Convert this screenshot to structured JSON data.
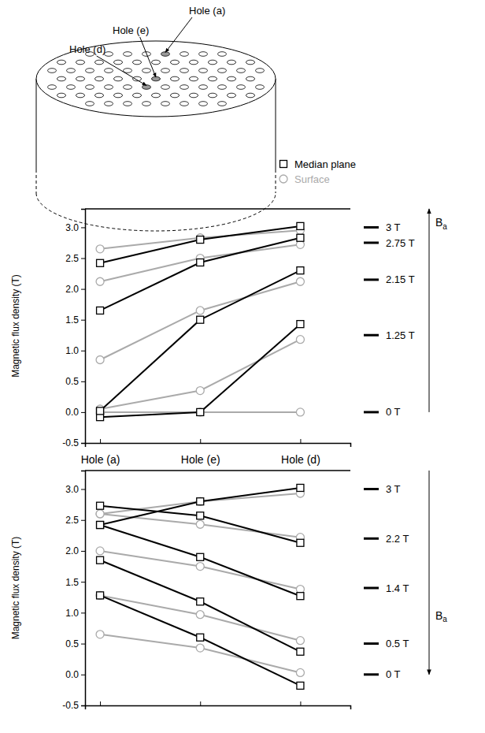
{
  "diagram": {
    "labels": [
      "Hole (a)",
      "Hole (e)",
      "Hole (d)"
    ]
  },
  "chart_data": [
    {
      "type": "line",
      "y_label": "Magnetic flux density (T)",
      "categories": [
        "Hole (a)",
        "Hole (e)",
        "Hole (d)"
      ],
      "ylim": [
        -0.5,
        3.3
      ],
      "yticks": [
        -0.5,
        {
          "value": 0,
          "label": "0.0"
        },
        0.5,
        {
          "value": 1,
          "label": "1.0"
        },
        1.5,
        {
          "value": 2,
          "label": "2.0"
        },
        2.5,
        {
          "value": 3,
          "label": "3.0"
        }
      ],
      "legend": "top",
      "series": [
        {
          "name": "Median plane",
          "color": "#000000",
          "marker": "square",
          "values": [
            -0.08,
            0.0,
            1.43
          ]
        },
        {
          "name": "Surface",
          "color": "#aaaaaa",
          "marker": "circle",
          "values": [
            0.05,
            0.35,
            1.18
          ]
        },
        {
          "name": "Median plane",
          "color": "#000000",
          "marker": "square",
          "values": [
            0.02,
            1.5,
            2.3
          ]
        },
        {
          "name": "Surface",
          "color": "#aaaaaa",
          "marker": "circle",
          "values": [
            0.85,
            1.65,
            2.12
          ]
        },
        {
          "name": "Median plane",
          "color": "#000000",
          "marker": "square",
          "values": [
            1.65,
            2.43,
            2.83
          ]
        },
        {
          "name": "Surface",
          "color": "#aaaaaa",
          "marker": "circle",
          "values": [
            2.12,
            2.5,
            2.72
          ]
        },
        {
          "name": "Median plane",
          "color": "#000000",
          "marker": "square",
          "values": [
            2.42,
            2.8,
            3.02
          ]
        },
        {
          "name": "Surface",
          "color": "#aaaaaa",
          "marker": "circle",
          "values": [
            2.65,
            2.83,
            2.95
          ]
        },
        {
          "name": "Surface",
          "color": "#aaaaaa",
          "marker": "circle",
          "values": [
            0,
            0,
            0
          ]
        }
      ],
      "annotations": [
        {
          "text": "3 T",
          "value": 3
        },
        {
          "text": "2.75 T",
          "value": 2.75
        },
        {
          "text": "2.15 T",
          "value": 2.15
        },
        {
          "text": "1.25 T",
          "value": 1.25
        },
        {
          "text": "0 T",
          "value": 0
        }
      ],
      "arrow": {
        "from": 0,
        "to": 3.3,
        "label": {
          "base": "B",
          "subscript": "a"
        }
      }
    },
    {
      "type": "line",
      "y_label": "Magnetic flux density (T)",
      "categories": [
        null,
        null,
        null
      ],
      "ylim": [
        -0.5,
        3.3
      ],
      "yticks": [
        -0.5,
        {
          "value": 0,
          "label": "0.0"
        },
        0.5,
        {
          "value": 1,
          "label": "1.0"
        },
        1.5,
        {
          "value": 2,
          "label": "2.0"
        },
        2.5,
        {
          "value": 3,
          "label": "3.0"
        }
      ],
      "series": [
        {
          "name": "Median plane",
          "color": "#000000",
          "marker": "square",
          "values": [
            2.42,
            2.8,
            3.02
          ]
        },
        {
          "name": "Surface",
          "color": "#aaaaaa",
          "marker": "circle",
          "values": [
            2.6,
            2.8,
            2.93
          ]
        },
        {
          "name": "Median plane",
          "color": "#000000",
          "marker": "square",
          "values": [
            2.73,
            2.57,
            2.13
          ]
        },
        {
          "name": "Surface",
          "color": "#aaaaaa",
          "marker": "circle",
          "values": [
            2.6,
            2.43,
            2.22
          ]
        },
        {
          "name": "Median plane",
          "color": "#000000",
          "marker": "square",
          "values": [
            2.42,
            1.9,
            1.27
          ]
        },
        {
          "name": "Surface",
          "color": "#aaaaaa",
          "marker": "circle",
          "values": [
            2.0,
            1.75,
            1.38
          ]
        },
        {
          "name": "Median plane",
          "color": "#000000",
          "marker": "square",
          "values": [
            1.85,
            1.18,
            0.37
          ]
        },
        {
          "name": "Surface",
          "color": "#aaaaaa",
          "marker": "circle",
          "values": [
            1.28,
            0.97,
            0.55
          ]
        },
        {
          "name": "Median plane",
          "color": "#000000",
          "marker": "square",
          "values": [
            1.28,
            0.6,
            -0.18
          ]
        },
        {
          "name": "Surface",
          "color": "#aaaaaa",
          "marker": "circle",
          "values": [
            0.65,
            0.43,
            0.03
          ]
        }
      ],
      "annotations": [
        {
          "text": "3 T",
          "value": 3
        },
        {
          "text": "2.2 T",
          "value": 2.2
        },
        {
          "text": "1.4 T",
          "value": 1.4
        },
        {
          "text": "0.5 T",
          "value": 0.5
        },
        {
          "text": "0 T",
          "value": 0
        }
      ],
      "arrow": {
        "from": 3.3,
        "to": 0,
        "label": {
          "base": "B",
          "subscript": "a"
        }
      }
    }
  ]
}
